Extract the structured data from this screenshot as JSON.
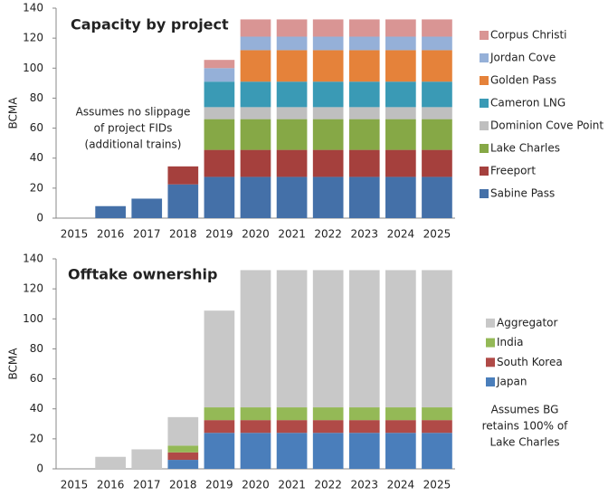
{
  "chart_data": [
    {
      "type": "bar",
      "stacked": true,
      "title": "Capacity by project",
      "y_label": "BCMA",
      "categories": [
        "2015",
        "2016",
        "2017",
        "2018",
        "2019",
        "2020",
        "2021",
        "2022",
        "2023",
        "2024",
        "2025"
      ],
      "series": [
        {
          "name": "Sabine Pass",
          "color": "#4470a8",
          "values": [
            0,
            8,
            13,
            22.5,
            27.5,
            27.5,
            27.5,
            27.5,
            27.5,
            27.5,
            27.5
          ]
        },
        {
          "name": "Freeport",
          "color": "#a5403d",
          "values": [
            0,
            0,
            0,
            12,
            18,
            18,
            18,
            18,
            18,
            18,
            18
          ]
        },
        {
          "name": "Lake Charles",
          "color": "#86a846",
          "values": [
            0,
            0,
            0,
            0,
            20.5,
            20.5,
            20.5,
            20.5,
            20.5,
            20.5,
            20.5
          ]
        },
        {
          "name": "Dominion Cove Point",
          "color": "#bfbfbf",
          "values": [
            0,
            0,
            0,
            0,
            8,
            8,
            8,
            8,
            8,
            8,
            8
          ]
        },
        {
          "name": "Cameron LNG",
          "color": "#3a9ab5",
          "values": [
            0,
            0,
            0,
            0,
            17,
            17,
            17,
            17,
            17,
            17,
            17
          ]
        },
        {
          "name": "Golden Pass",
          "color": "#e5823a",
          "values": [
            0,
            0,
            0,
            0,
            0,
            21,
            21,
            21,
            21,
            21,
            21
          ]
        },
        {
          "name": "Jordan Cove",
          "color": "#95b0d8",
          "values": [
            0,
            0,
            0,
            0,
            9,
            9,
            9,
            9,
            9,
            9,
            9
          ]
        },
        {
          "name": "Corpus Christi",
          "color": "#d99594",
          "values": [
            0,
            0,
            0,
            0,
            5.5,
            11.5,
            11.5,
            11.5,
            11.5,
            11.5,
            11.5
          ]
        }
      ],
      "ylim": [
        0,
        140
      ],
      "yticks": [
        0,
        20,
        40,
        60,
        80,
        100,
        120,
        140
      ],
      "grid": false,
      "legend": "right",
      "annotation": [
        "Assumes no slippage",
        "of project FIDs",
        "(additional trains)"
      ]
    },
    {
      "type": "bar",
      "stacked": true,
      "title": "Offtake ownership",
      "y_label": "BCMA",
      "categories": [
        "2015",
        "2016",
        "2017",
        "2018",
        "2019",
        "2020",
        "2021",
        "2022",
        "2023",
        "2024",
        "2025"
      ],
      "series": [
        {
          "name": "Japan",
          "color": "#4a7ebb",
          "values": [
            0,
            0,
            0,
            6,
            24,
            24,
            24,
            24,
            24,
            24,
            24
          ]
        },
        {
          "name": "South Korea",
          "color": "#b04a47",
          "values": [
            0,
            0,
            0,
            5,
            8.5,
            8.5,
            8.5,
            8.5,
            8.5,
            8.5,
            8.5
          ]
        },
        {
          "name": "India",
          "color": "#94b956",
          "values": [
            0,
            0,
            0,
            4.5,
            8.5,
            8.5,
            8.5,
            8.5,
            8.5,
            8.5,
            8.5
          ]
        },
        {
          "name": "Aggregator",
          "color": "#c8c8c8",
          "values": [
            0,
            8,
            13,
            19,
            64.5,
            91.5,
            91.5,
            91.5,
            91.5,
            91.5,
            91.5
          ]
        }
      ],
      "ylim": [
        0,
        140
      ],
      "yticks": [
        0,
        20,
        40,
        60,
        80,
        100,
        120,
        140
      ],
      "grid": false,
      "legend": "right",
      "annotation": [
        "Assumes BG",
        "retains 100% of",
        "Lake Charles"
      ]
    }
  ]
}
